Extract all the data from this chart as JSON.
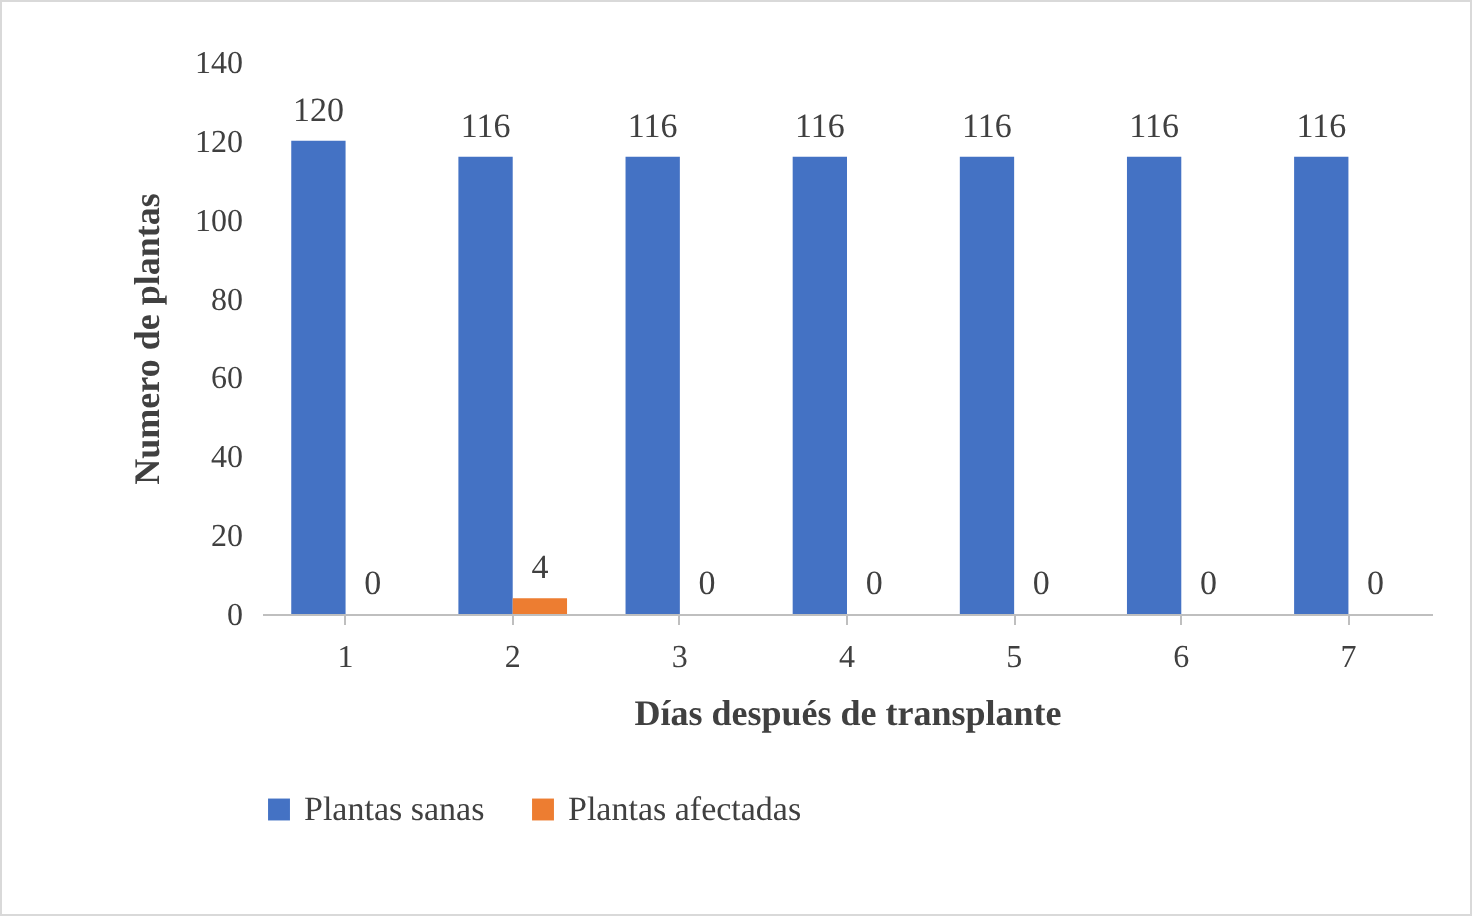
{
  "chart_data": {
    "type": "bar",
    "xlabel": "Días después de transplante",
    "ylabel": "Numero de plantas",
    "categories": [
      "1",
      "2",
      "3",
      "4",
      "5",
      "6",
      "7"
    ],
    "series": [
      {
        "name": "Plantas sanas",
        "color": "#4472c4",
        "values": [
          120,
          116,
          116,
          116,
          116,
          116,
          116
        ]
      },
      {
        "name": "Plantas afectadas",
        "color": "#ed7d31",
        "values": [
          0,
          4,
          0,
          0,
          0,
          0,
          0
        ]
      }
    ],
    "ylim": [
      0,
      140
    ],
    "yticks": [
      0,
      20,
      40,
      60,
      80,
      100,
      120,
      140
    ],
    "grid": false,
    "data_labels": true,
    "legend": "bottom"
  }
}
